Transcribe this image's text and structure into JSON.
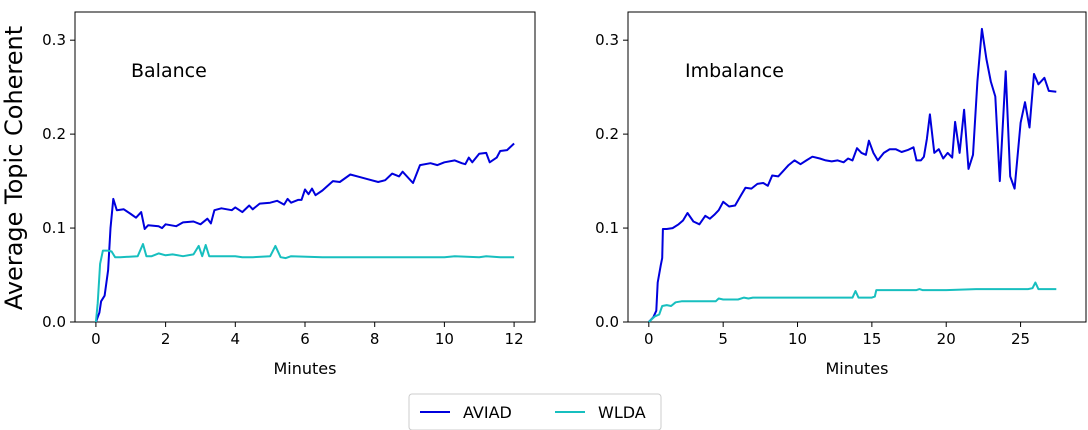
{
  "figure": {
    "ylabel": "Average Topic Coherent",
    "legend": [
      {
        "name": "AVIAD",
        "color": "#0000dd"
      },
      {
        "name": "WLDA",
        "color": "#17bfbf"
      }
    ],
    "legend_placement": "bottom-center"
  },
  "chart_data": [
    {
      "type": "line",
      "annotation": "Balance",
      "xlabel": "Minutes",
      "ylabel": "Average Topic Coherent",
      "xlim": [
        -0.6,
        12.6
      ],
      "ylim": [
        0,
        0.33
      ],
      "xticks": [
        0,
        2,
        4,
        6,
        8,
        10,
        12
      ],
      "yticks": [
        0.0,
        0.1,
        0.2,
        0.3
      ],
      "xtick_labels": [
        "0",
        "2",
        "4",
        "6",
        "8",
        "10",
        "12"
      ],
      "ytick_labels": [
        "0.0",
        "0.1",
        "0.2",
        "0.3"
      ],
      "series": [
        {
          "name": "AVIAD",
          "color": "#0000dd",
          "points": [
            [
              0,
              0
            ],
            [
              0.1,
              0.01
            ],
            [
              0.15,
              0.022
            ],
            [
              0.25,
              0.028
            ],
            [
              0.35,
              0.055
            ],
            [
              0.42,
              0.1
            ],
            [
              0.5,
              0.131
            ],
            [
              0.6,
              0.119
            ],
            [
              0.8,
              0.12
            ],
            [
              1.0,
              0.115
            ],
            [
              1.15,
              0.111
            ],
            [
              1.3,
              0.117
            ],
            [
              1.4,
              0.099
            ],
            [
              1.5,
              0.103
            ],
            [
              1.8,
              0.102
            ],
            [
              1.9,
              0.1
            ],
            [
              2.0,
              0.104
            ],
            [
              2.3,
              0.102
            ],
            [
              2.5,
              0.106
            ],
            [
              2.8,
              0.107
            ],
            [
              3.0,
              0.104
            ],
            [
              3.2,
              0.11
            ],
            [
              3.3,
              0.105
            ],
            [
              3.4,
              0.119
            ],
            [
              3.6,
              0.121
            ],
            [
              3.9,
              0.119
            ],
            [
              4.0,
              0.122
            ],
            [
              4.2,
              0.117
            ],
            [
              4.4,
              0.124
            ],
            [
              4.5,
              0.12
            ],
            [
              4.7,
              0.126
            ],
            [
              5.0,
              0.127
            ],
            [
              5.2,
              0.129
            ],
            [
              5.4,
              0.125
            ],
            [
              5.5,
              0.131
            ],
            [
              5.6,
              0.127
            ],
            [
              5.8,
              0.13
            ],
            [
              5.9,
              0.13
            ],
            [
              6.0,
              0.141
            ],
            [
              6.1,
              0.136
            ],
            [
              6.2,
              0.142
            ],
            [
              6.3,
              0.135
            ],
            [
              6.5,
              0.14
            ],
            [
              6.8,
              0.15
            ],
            [
              7.0,
              0.149
            ],
            [
              7.3,
              0.157
            ],
            [
              7.6,
              0.154
            ],
            [
              7.8,
              0.152
            ],
            [
              8.1,
              0.149
            ],
            [
              8.3,
              0.151
            ],
            [
              8.5,
              0.158
            ],
            [
              8.7,
              0.155
            ],
            [
              8.8,
              0.16
            ],
            [
              9.1,
              0.148
            ],
            [
              9.3,
              0.167
            ],
            [
              9.6,
              0.169
            ],
            [
              9.8,
              0.167
            ],
            [
              10.0,
              0.17
            ],
            [
              10.3,
              0.172
            ],
            [
              10.5,
              0.169
            ],
            [
              10.6,
              0.168
            ],
            [
              10.7,
              0.175
            ],
            [
              10.8,
              0.17
            ],
            [
              11.0,
              0.179
            ],
            [
              11.2,
              0.18
            ],
            [
              11.3,
              0.17
            ],
            [
              11.5,
              0.175
            ],
            [
              11.6,
              0.182
            ],
            [
              11.8,
              0.183
            ],
            [
              12.0,
              0.19
            ]
          ]
        },
        {
          "name": "WLDA",
          "color": "#17bfbf",
          "points": [
            [
              0,
              0
            ],
            [
              0.05,
              0.02
            ],
            [
              0.12,
              0.062
            ],
            [
              0.2,
              0.076
            ],
            [
              0.35,
              0.076
            ],
            [
              0.45,
              0.075
            ],
            [
              0.55,
              0.069
            ],
            [
              0.7,
              0.069
            ],
            [
              1.2,
              0.07
            ],
            [
              1.35,
              0.083
            ],
            [
              1.45,
              0.07
            ],
            [
              1.6,
              0.07
            ],
            [
              1.8,
              0.073
            ],
            [
              2.0,
              0.071
            ],
            [
              2.2,
              0.072
            ],
            [
              2.5,
              0.07
            ],
            [
              2.8,
              0.072
            ],
            [
              2.95,
              0.081
            ],
            [
              3.05,
              0.07
            ],
            [
              3.15,
              0.082
            ],
            [
              3.25,
              0.07
            ],
            [
              3.5,
              0.07
            ],
            [
              4.0,
              0.07
            ],
            [
              4.2,
              0.069
            ],
            [
              4.5,
              0.069
            ],
            [
              5.0,
              0.07
            ],
            [
              5.15,
              0.081
            ],
            [
              5.3,
              0.069
            ],
            [
              5.45,
              0.068
            ],
            [
              5.6,
              0.07
            ],
            [
              6.5,
              0.069
            ],
            [
              8.0,
              0.069
            ],
            [
              10.0,
              0.069
            ],
            [
              10.3,
              0.07
            ],
            [
              11.0,
              0.069
            ],
            [
              11.2,
              0.07
            ],
            [
              11.6,
              0.069
            ],
            [
              12.0,
              0.069
            ]
          ]
        }
      ]
    },
    {
      "type": "line",
      "annotation": "Imbalance",
      "xlabel": "Minutes",
      "ylabel": "",
      "xlim": [
        -1.4,
        29.4
      ],
      "ylim": [
        0,
        0.33
      ],
      "xticks": [
        0,
        5,
        10,
        15,
        20,
        25
      ],
      "yticks": [
        0.0,
        0.1,
        0.2,
        0.3
      ],
      "xtick_labels": [
        "0",
        "5",
        "10",
        "15",
        "20",
        "25"
      ],
      "ytick_labels": [
        "0.0",
        "0.1",
        "0.2",
        "0.3"
      ],
      "series": [
        {
          "name": "AVIAD",
          "color": "#0000dd",
          "points": [
            [
              0,
              0
            ],
            [
              0.3,
              0.005
            ],
            [
              0.5,
              0.012
            ],
            [
              0.6,
              0.042
            ],
            [
              0.8,
              0.06
            ],
            [
              0.9,
              0.068
            ],
            [
              0.95,
              0.099
            ],
            [
              1.2,
              0.099
            ],
            [
              1.6,
              0.1
            ],
            [
              2.0,
              0.104
            ],
            [
              2.3,
              0.108
            ],
            [
              2.6,
              0.116
            ],
            [
              3.0,
              0.107
            ],
            [
              3.4,
              0.104
            ],
            [
              3.8,
              0.113
            ],
            [
              4.1,
              0.11
            ],
            [
              4.4,
              0.114
            ],
            [
              4.7,
              0.119
            ],
            [
              5.0,
              0.128
            ],
            [
              5.4,
              0.123
            ],
            [
              5.8,
              0.124
            ],
            [
              6.2,
              0.135
            ],
            [
              6.5,
              0.143
            ],
            [
              6.9,
              0.142
            ],
            [
              7.3,
              0.147
            ],
            [
              7.7,
              0.148
            ],
            [
              8.0,
              0.145
            ],
            [
              8.3,
              0.156
            ],
            [
              8.7,
              0.155
            ],
            [
              9.0,
              0.16
            ],
            [
              9.4,
              0.167
            ],
            [
              9.8,
              0.172
            ],
            [
              10.2,
              0.168
            ],
            [
              10.6,
              0.172
            ],
            [
              11.0,
              0.176
            ],
            [
              11.5,
              0.174
            ],
            [
              11.9,
              0.172
            ],
            [
              12.3,
              0.171
            ],
            [
              12.7,
              0.172
            ],
            [
              13.1,
              0.17
            ],
            [
              13.4,
              0.174
            ],
            [
              13.7,
              0.172
            ],
            [
              14.0,
              0.185
            ],
            [
              14.3,
              0.18
            ],
            [
              14.6,
              0.178
            ],
            [
              14.8,
              0.193
            ],
            [
              15.1,
              0.18
            ],
            [
              15.4,
              0.172
            ],
            [
              15.8,
              0.18
            ],
            [
              16.2,
              0.184
            ],
            [
              16.6,
              0.184
            ],
            [
              17.0,
              0.181
            ],
            [
              17.4,
              0.183
            ],
            [
              17.8,
              0.186
            ],
            [
              18.0,
              0.172
            ],
            [
              18.3,
              0.172
            ],
            [
              18.5,
              0.176
            ],
            [
              18.7,
              0.195
            ],
            [
              18.9,
              0.221
            ],
            [
              19.2,
              0.18
            ],
            [
              19.5,
              0.184
            ],
            [
              19.8,
              0.174
            ],
            [
              20.1,
              0.18
            ],
            [
              20.4,
              0.175
            ],
            [
              20.6,
              0.213
            ],
            [
              20.9,
              0.18
            ],
            [
              21.2,
              0.226
            ],
            [
              21.5,
              0.163
            ],
            [
              21.8,
              0.178
            ],
            [
              22.1,
              0.256
            ],
            [
              22.4,
              0.312
            ],
            [
              22.7,
              0.28
            ],
            [
              23.0,
              0.256
            ],
            [
              23.3,
              0.24
            ],
            [
              23.6,
              0.15
            ],
            [
              24.0,
              0.267
            ],
            [
              24.3,
              0.155
            ],
            [
              24.6,
              0.142
            ],
            [
              25.0,
              0.212
            ],
            [
              25.3,
              0.234
            ],
            [
              25.6,
              0.207
            ],
            [
              25.9,
              0.264
            ],
            [
              26.2,
              0.253
            ],
            [
              26.6,
              0.26
            ],
            [
              26.9,
              0.246
            ],
            [
              27.4,
              0.245
            ]
          ]
        },
        {
          "name": "WLDA",
          "color": "#17bfbf",
          "points": [
            [
              0,
              0
            ],
            [
              0.4,
              0.006
            ],
            [
              0.7,
              0.008
            ],
            [
              0.9,
              0.017
            ],
            [
              1.2,
              0.018
            ],
            [
              1.5,
              0.017
            ],
            [
              1.8,
              0.021
            ],
            [
              2.2,
              0.022
            ],
            [
              3.0,
              0.022
            ],
            [
              4.0,
              0.022
            ],
            [
              4.5,
              0.022
            ],
            [
              4.7,
              0.025
            ],
            [
              5.0,
              0.024
            ],
            [
              5.5,
              0.024
            ],
            [
              6.0,
              0.024
            ],
            [
              6.4,
              0.026
            ],
            [
              6.7,
              0.025
            ],
            [
              7.0,
              0.026
            ],
            [
              8.0,
              0.026
            ],
            [
              10.0,
              0.026
            ],
            [
              12.0,
              0.026
            ],
            [
              13.0,
              0.026
            ],
            [
              13.7,
              0.026
            ],
            [
              13.9,
              0.033
            ],
            [
              14.1,
              0.026
            ],
            [
              14.5,
              0.026
            ],
            [
              15.0,
              0.026
            ],
            [
              15.2,
              0.027
            ],
            [
              15.3,
              0.034
            ],
            [
              16.0,
              0.034
            ],
            [
              17.0,
              0.034
            ],
            [
              18.0,
              0.034
            ],
            [
              18.2,
              0.035
            ],
            [
              18.4,
              0.034
            ],
            [
              20.0,
              0.034
            ],
            [
              22.0,
              0.035
            ],
            [
              24.0,
              0.035
            ],
            [
              25.5,
              0.035
            ],
            [
              25.8,
              0.036
            ],
            [
              26.0,
              0.042
            ],
            [
              26.2,
              0.035
            ],
            [
              26.5,
              0.035
            ],
            [
              27.4,
              0.035
            ]
          ]
        }
      ]
    }
  ]
}
